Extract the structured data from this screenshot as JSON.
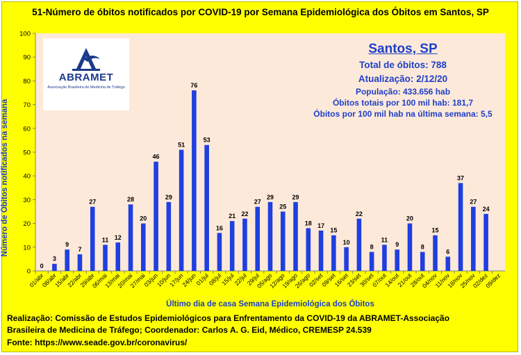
{
  "colors": {
    "background": "#ffff00",
    "plot_background": "#fde9d9",
    "bar": "#1f3fe0",
    "accent_text": "#1f3fc8"
  },
  "logo": {
    "name": "ABRAMET",
    "subtitle": "Associação Brasileira de Medicina de Tráfego"
  },
  "info": {
    "city": "Santos, SP",
    "total": "Total de óbitos: 788",
    "update": "Atualização: 2/12/20",
    "population": "População: 433.656 hab",
    "per100k": "Óbitos totais por 100 mil hab: 181,7",
    "per100k_week": "Óbitos por 100 mil hab na última semana: 5,5"
  },
  "footer": {
    "line1": "Realização: Comissão de Estudos Epidemiológicos para Enfrentamento da COVID-19 da ABRAMET-Associação",
    "line2": "Brasileira de Medicina de Tráfego; Coordenador: Carlos A. G. Eid, Médico, CREMESP 24.539",
    "line3": "Fonte: https://www.seade.gov.br/coronavirus/"
  },
  "chart_data": {
    "type": "bar",
    "title": "51-Número de óbitos notificados por COVID-19 por Semana Epidemiológica dos Óbitos  em Santos, SP",
    "xlabel": "Último dia de casa Semana Epidemiológica dos Óbitos",
    "ylabel": "Número de Óbitos notificados na semana",
    "ylim": [
      0,
      100
    ],
    "yticks": [
      0,
      10,
      20,
      30,
      40,
      50,
      60,
      70,
      80,
      90,
      100
    ],
    "grid": false,
    "categories": [
      "01/abr",
      "08/abr",
      "15/abr",
      "22/abr",
      "29/abr",
      "06/mai",
      "13/mai",
      "20/mai",
      "27/mai",
      "03/jun",
      "10/jun",
      "17/jun",
      "24/jun",
      "01/jul",
      "08/jul",
      "15/jul",
      "22/jul",
      "29/jul",
      "05/ago",
      "12/ago",
      "19/ago",
      "26/ago",
      "02/set",
      "09/set",
      "16/set",
      "23/set",
      "30/set",
      "07/out",
      "14/out",
      "21/out",
      "28/out",
      "04/nov",
      "11/nov",
      "18/nov",
      "25/nov",
      "02/dez",
      "09/dez"
    ],
    "values": [
      0,
      3,
      9,
      7,
      27,
      11,
      12,
      28,
      20,
      46,
      29,
      51,
      76,
      53,
      16,
      21,
      22,
      27,
      29,
      25,
      29,
      18,
      17,
      15,
      10,
      22,
      8,
      11,
      9,
      20,
      8,
      15,
      6,
      37,
      27,
      24,
      null
    ]
  }
}
